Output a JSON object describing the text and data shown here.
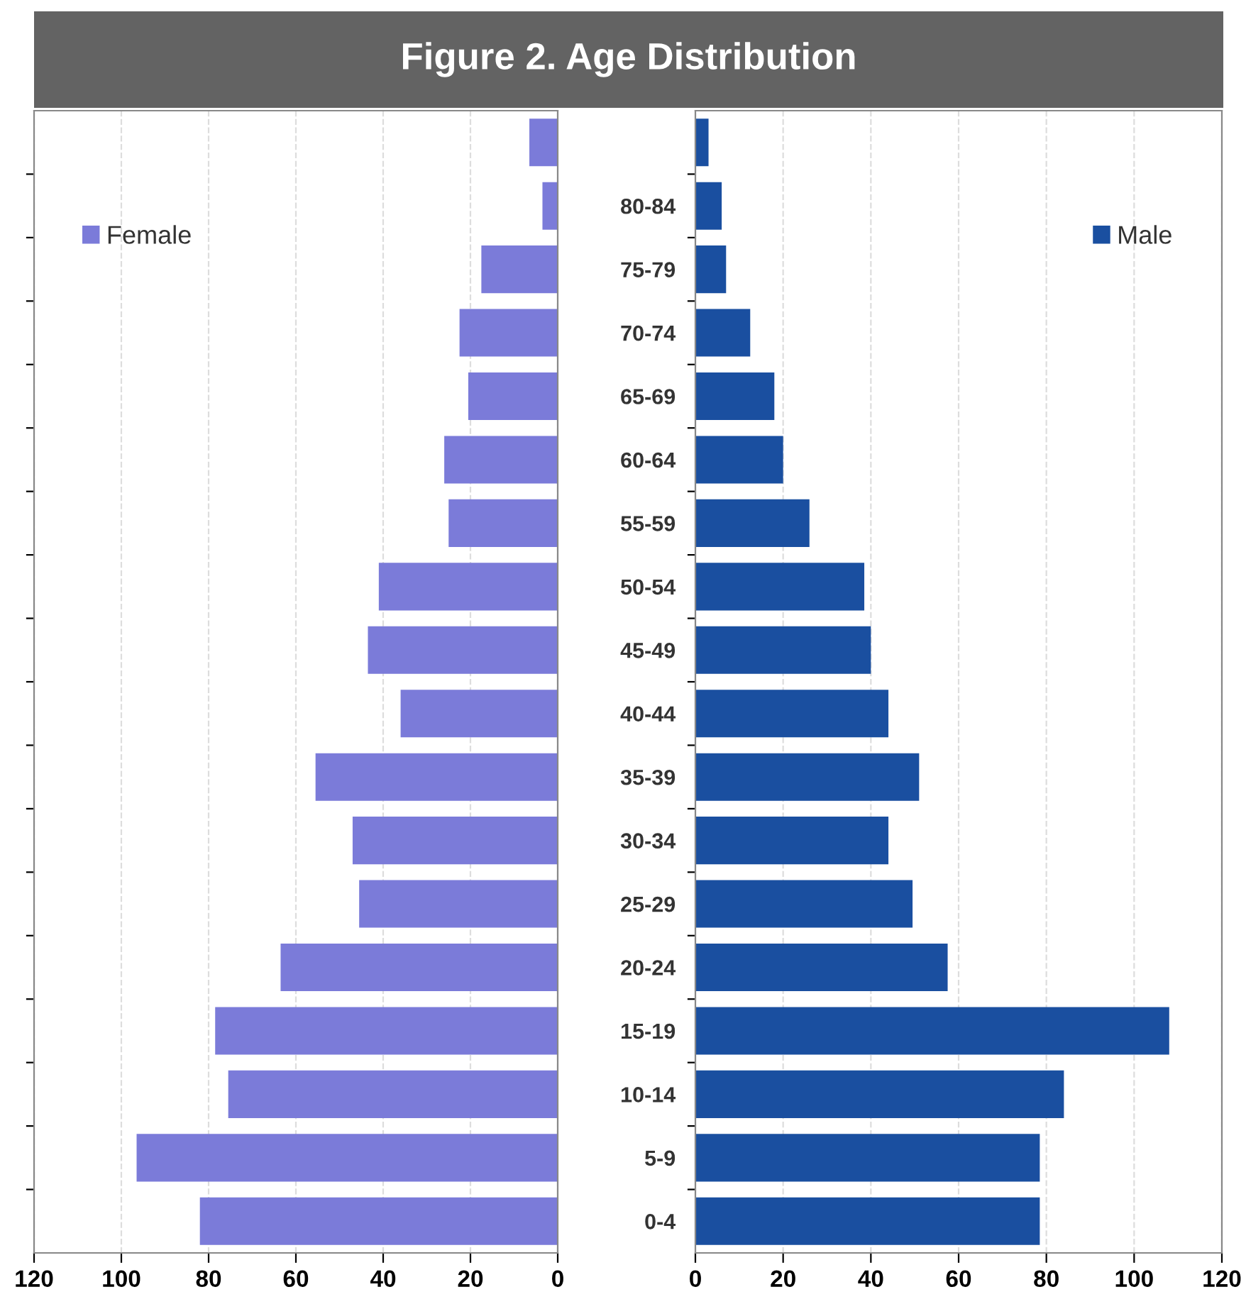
{
  "chart_data": [
    {
      "type": "bar",
      "orientation": "horizontal",
      "title": "Figure 2. Age Distribution",
      "categories": [
        null,
        null,
        null,
        null,
        null,
        null,
        null,
        null,
        null,
        null,
        null,
        null,
        null,
        null,
        null,
        null,
        null,
        null
      ],
      "series": [
        {
          "name": "Female",
          "color": "#7b7bd9",
          "values": [
            6.5,
            3.5,
            17.5,
            22.5,
            20.5,
            26,
            25,
            41,
            43.5,
            36,
            55.5,
            47,
            45.5,
            63.5,
            78.5,
            75.5,
            96.5,
            82
          ]
        }
      ],
      "xlim": [
        120,
        0
      ],
      "xticks": [
        120,
        100,
        80,
        60,
        40,
        20,
        0
      ],
      "grid": "x",
      "legend": "top left",
      "tick_labels": "x"
    },
    {
      "type": "bar",
      "orientation": "horizontal",
      "categories": [
        null,
        "80-84",
        "75-79",
        "70-74",
        "65-69",
        "60-64",
        "55-59",
        "50-54",
        "45-49",
        "40-44",
        "35-39",
        "30-34",
        "25-29",
        "20-24",
        "15-19",
        "10-14",
        "5-9",
        "0-4"
      ],
      "series": [
        {
          "name": "Male",
          "color": "#1a4fa0",
          "values": [
            3,
            6,
            7,
            12.5,
            18,
            20,
            26,
            38.5,
            40,
            44,
            51,
            44,
            49.5,
            57.5,
            108,
            84,
            78.5,
            78.5
          ]
        }
      ],
      "xlim": [
        0,
        120
      ],
      "xticks": [
        0,
        20,
        40,
        60,
        80,
        100,
        120
      ],
      "grid": "x",
      "legend": "top right"
    }
  ]
}
